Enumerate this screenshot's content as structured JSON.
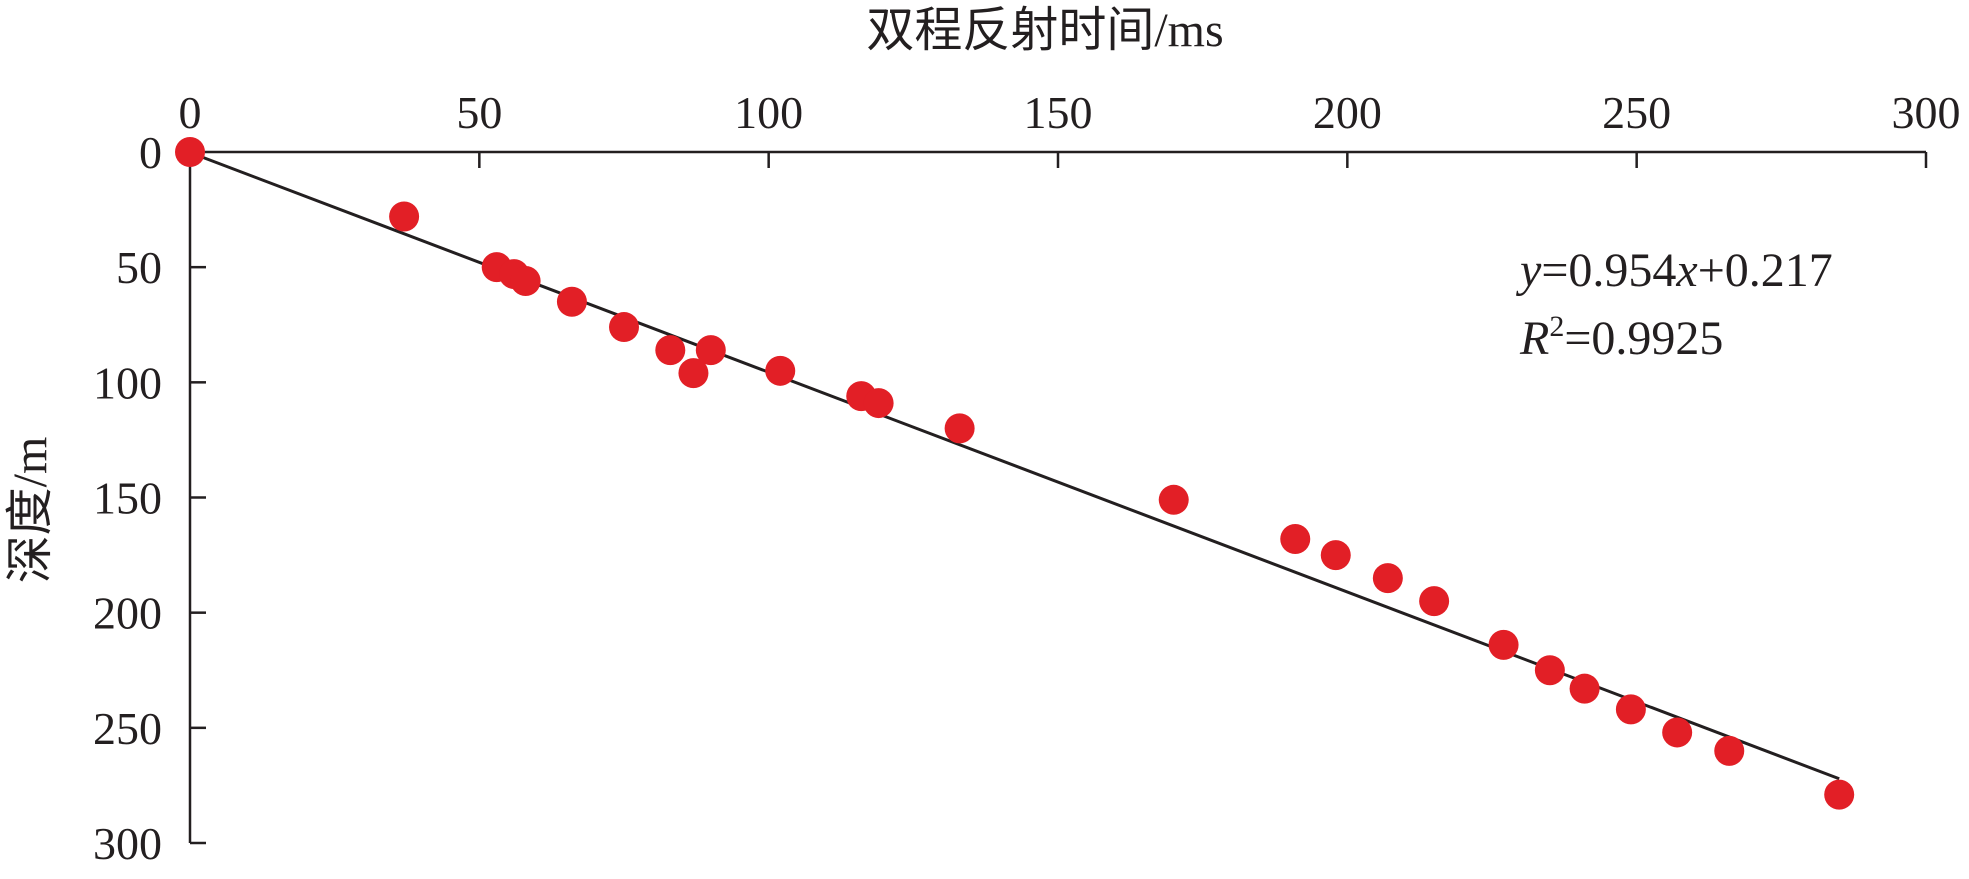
{
  "chart_data": {
    "type": "scatter",
    "xlabel": "双程反射时间/ms",
    "ylabel": "深度/m",
    "xlim": [
      0,
      300
    ],
    "ylim": [
      0,
      300
    ],
    "x_ticks": [
      "0",
      "50",
      "100",
      "150",
      "200",
      "250",
      "300"
    ],
    "y_ticks": [
      "0",
      "50",
      "100",
      "150",
      "200",
      "250",
      "300"
    ],
    "x_axis_position": "top",
    "y_axis_inverted": true,
    "grid": false,
    "point_color": "#e21f26",
    "line_color": "#231f20",
    "points": [
      {
        "x": 0,
        "y": 0
      },
      {
        "x": 37,
        "y": 28
      },
      {
        "x": 53,
        "y": 50
      },
      {
        "x": 56,
        "y": 53
      },
      {
        "x": 58,
        "y": 56
      },
      {
        "x": 66,
        "y": 65
      },
      {
        "x": 75,
        "y": 76
      },
      {
        "x": 83,
        "y": 86
      },
      {
        "x": 87,
        "y": 96
      },
      {
        "x": 90,
        "y": 86
      },
      {
        "x": 102,
        "y": 95
      },
      {
        "x": 116,
        "y": 106
      },
      {
        "x": 119,
        "y": 109
      },
      {
        "x": 133,
        "y": 120
      },
      {
        "x": 170,
        "y": 151
      },
      {
        "x": 191,
        "y": 168
      },
      {
        "x": 198,
        "y": 175
      },
      {
        "x": 207,
        "y": 185
      },
      {
        "x": 215,
        "y": 195
      },
      {
        "x": 227,
        "y": 214
      },
      {
        "x": 235,
        "y": 225
      },
      {
        "x": 241,
        "y": 233
      },
      {
        "x": 249,
        "y": 242
      },
      {
        "x": 257,
        "y": 252
      },
      {
        "x": 266,
        "y": 260
      },
      {
        "x": 285,
        "y": 279
      }
    ],
    "fit": {
      "slope": 0.954,
      "intercept": 0.217,
      "x_range": [
        0,
        285
      ],
      "equation_prefix": "y",
      "equation_rest": "=0.954",
      "equation_var": "x",
      "equation_suffix": "+0.217",
      "r2_prefix": "R",
      "r2_sup": "2",
      "r2_value": "=0.9925"
    }
  }
}
